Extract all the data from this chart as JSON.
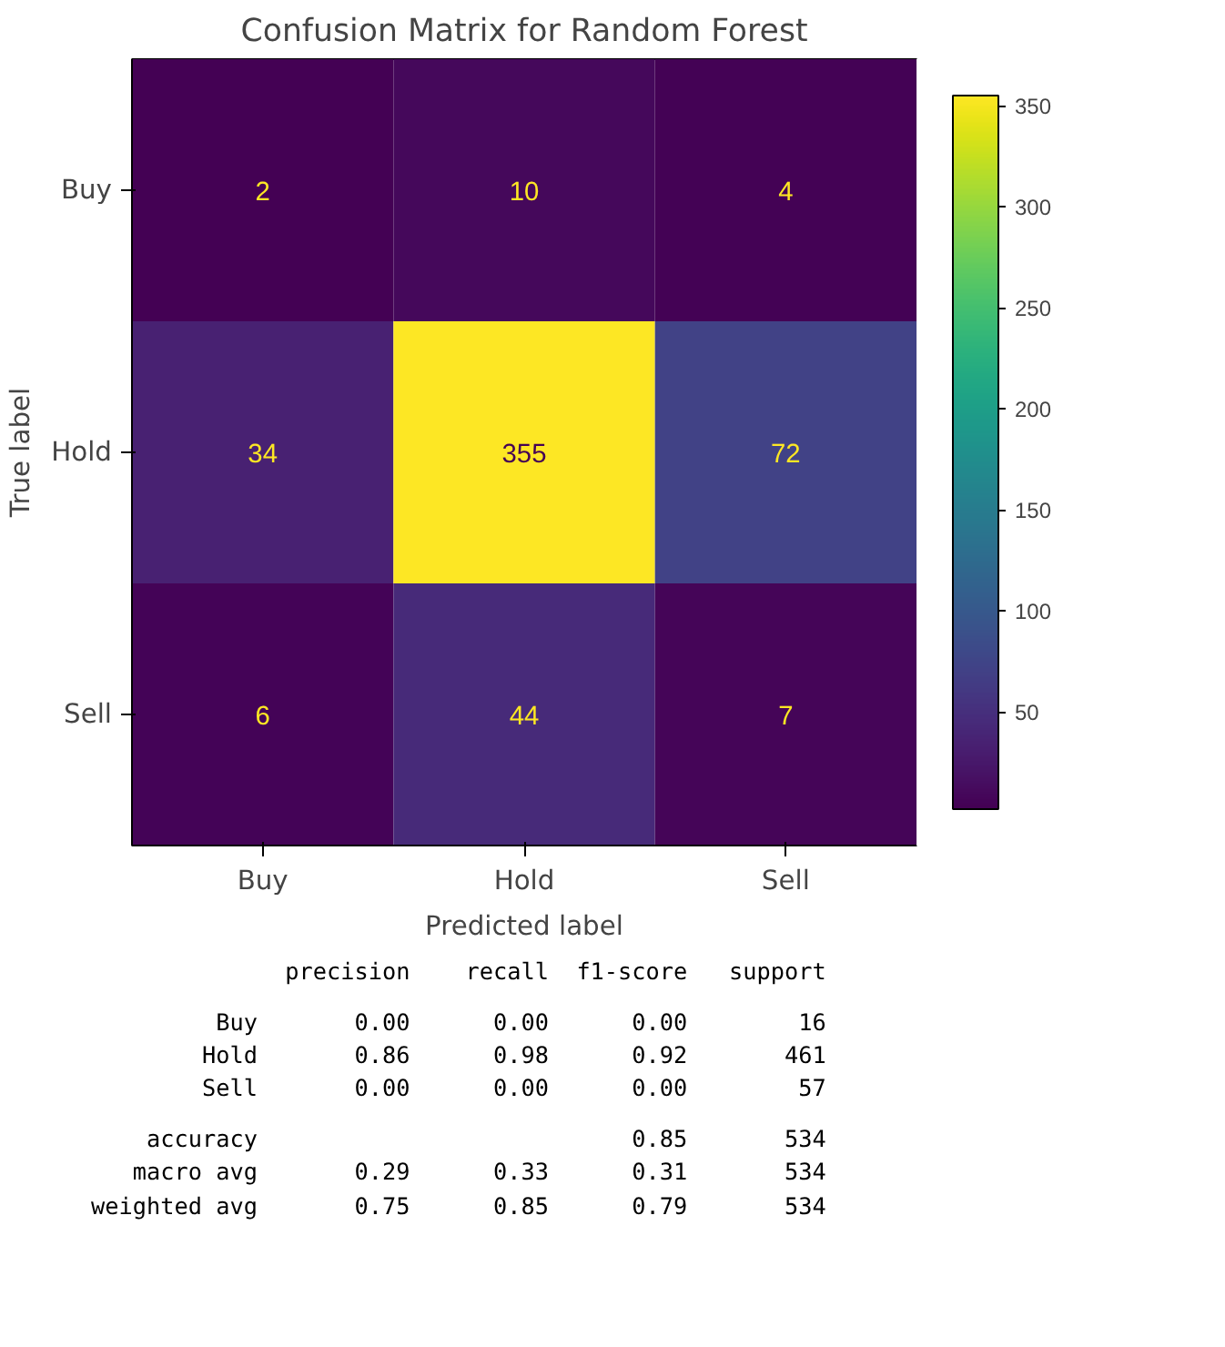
{
  "chart_data": {
    "type": "heatmap",
    "title": "Confusion Matrix for Random Forest",
    "xlabel": "Predicted label",
    "ylabel": "True label",
    "categories": [
      "Buy",
      "Hold",
      "Sell"
    ],
    "y_categories": [
      "Buy",
      "Hold",
      "Sell"
    ],
    "cells": [
      [
        2,
        10,
        4
      ],
      [
        34,
        355,
        72
      ],
      [
        6,
        44,
        7
      ]
    ],
    "data_labels": true,
    "clim": [
      2,
      355
    ],
    "cticks": [
      50,
      100,
      150,
      200,
      250,
      300,
      350
    ],
    "annotations": [
      "              precision    recall  f1-score   support",
      "         Buy       0.00      0.00      0.00        16\n        Hold       0.86      0.98      0.92       461\n        Sell       0.00      0.00      0.00        57",
      "    accuracy                           0.85       534\n   macro avg       0.29      0.33      0.31       534\nweighted avg       0.75      0.85      0.79       534"
    ]
  }
}
